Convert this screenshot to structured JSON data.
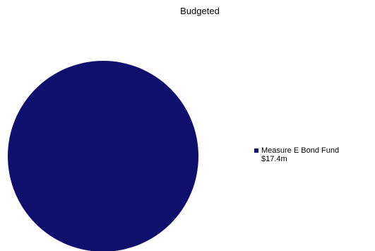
{
  "chart_data": {
    "type": "pie",
    "title": "Budgeted",
    "slices": [
      {
        "name": "Measure E Bond Fund",
        "label": "$17.4m",
        "value": 17.4,
        "color": "#0f0f6e"
      }
    ],
    "legend_position": "right"
  }
}
